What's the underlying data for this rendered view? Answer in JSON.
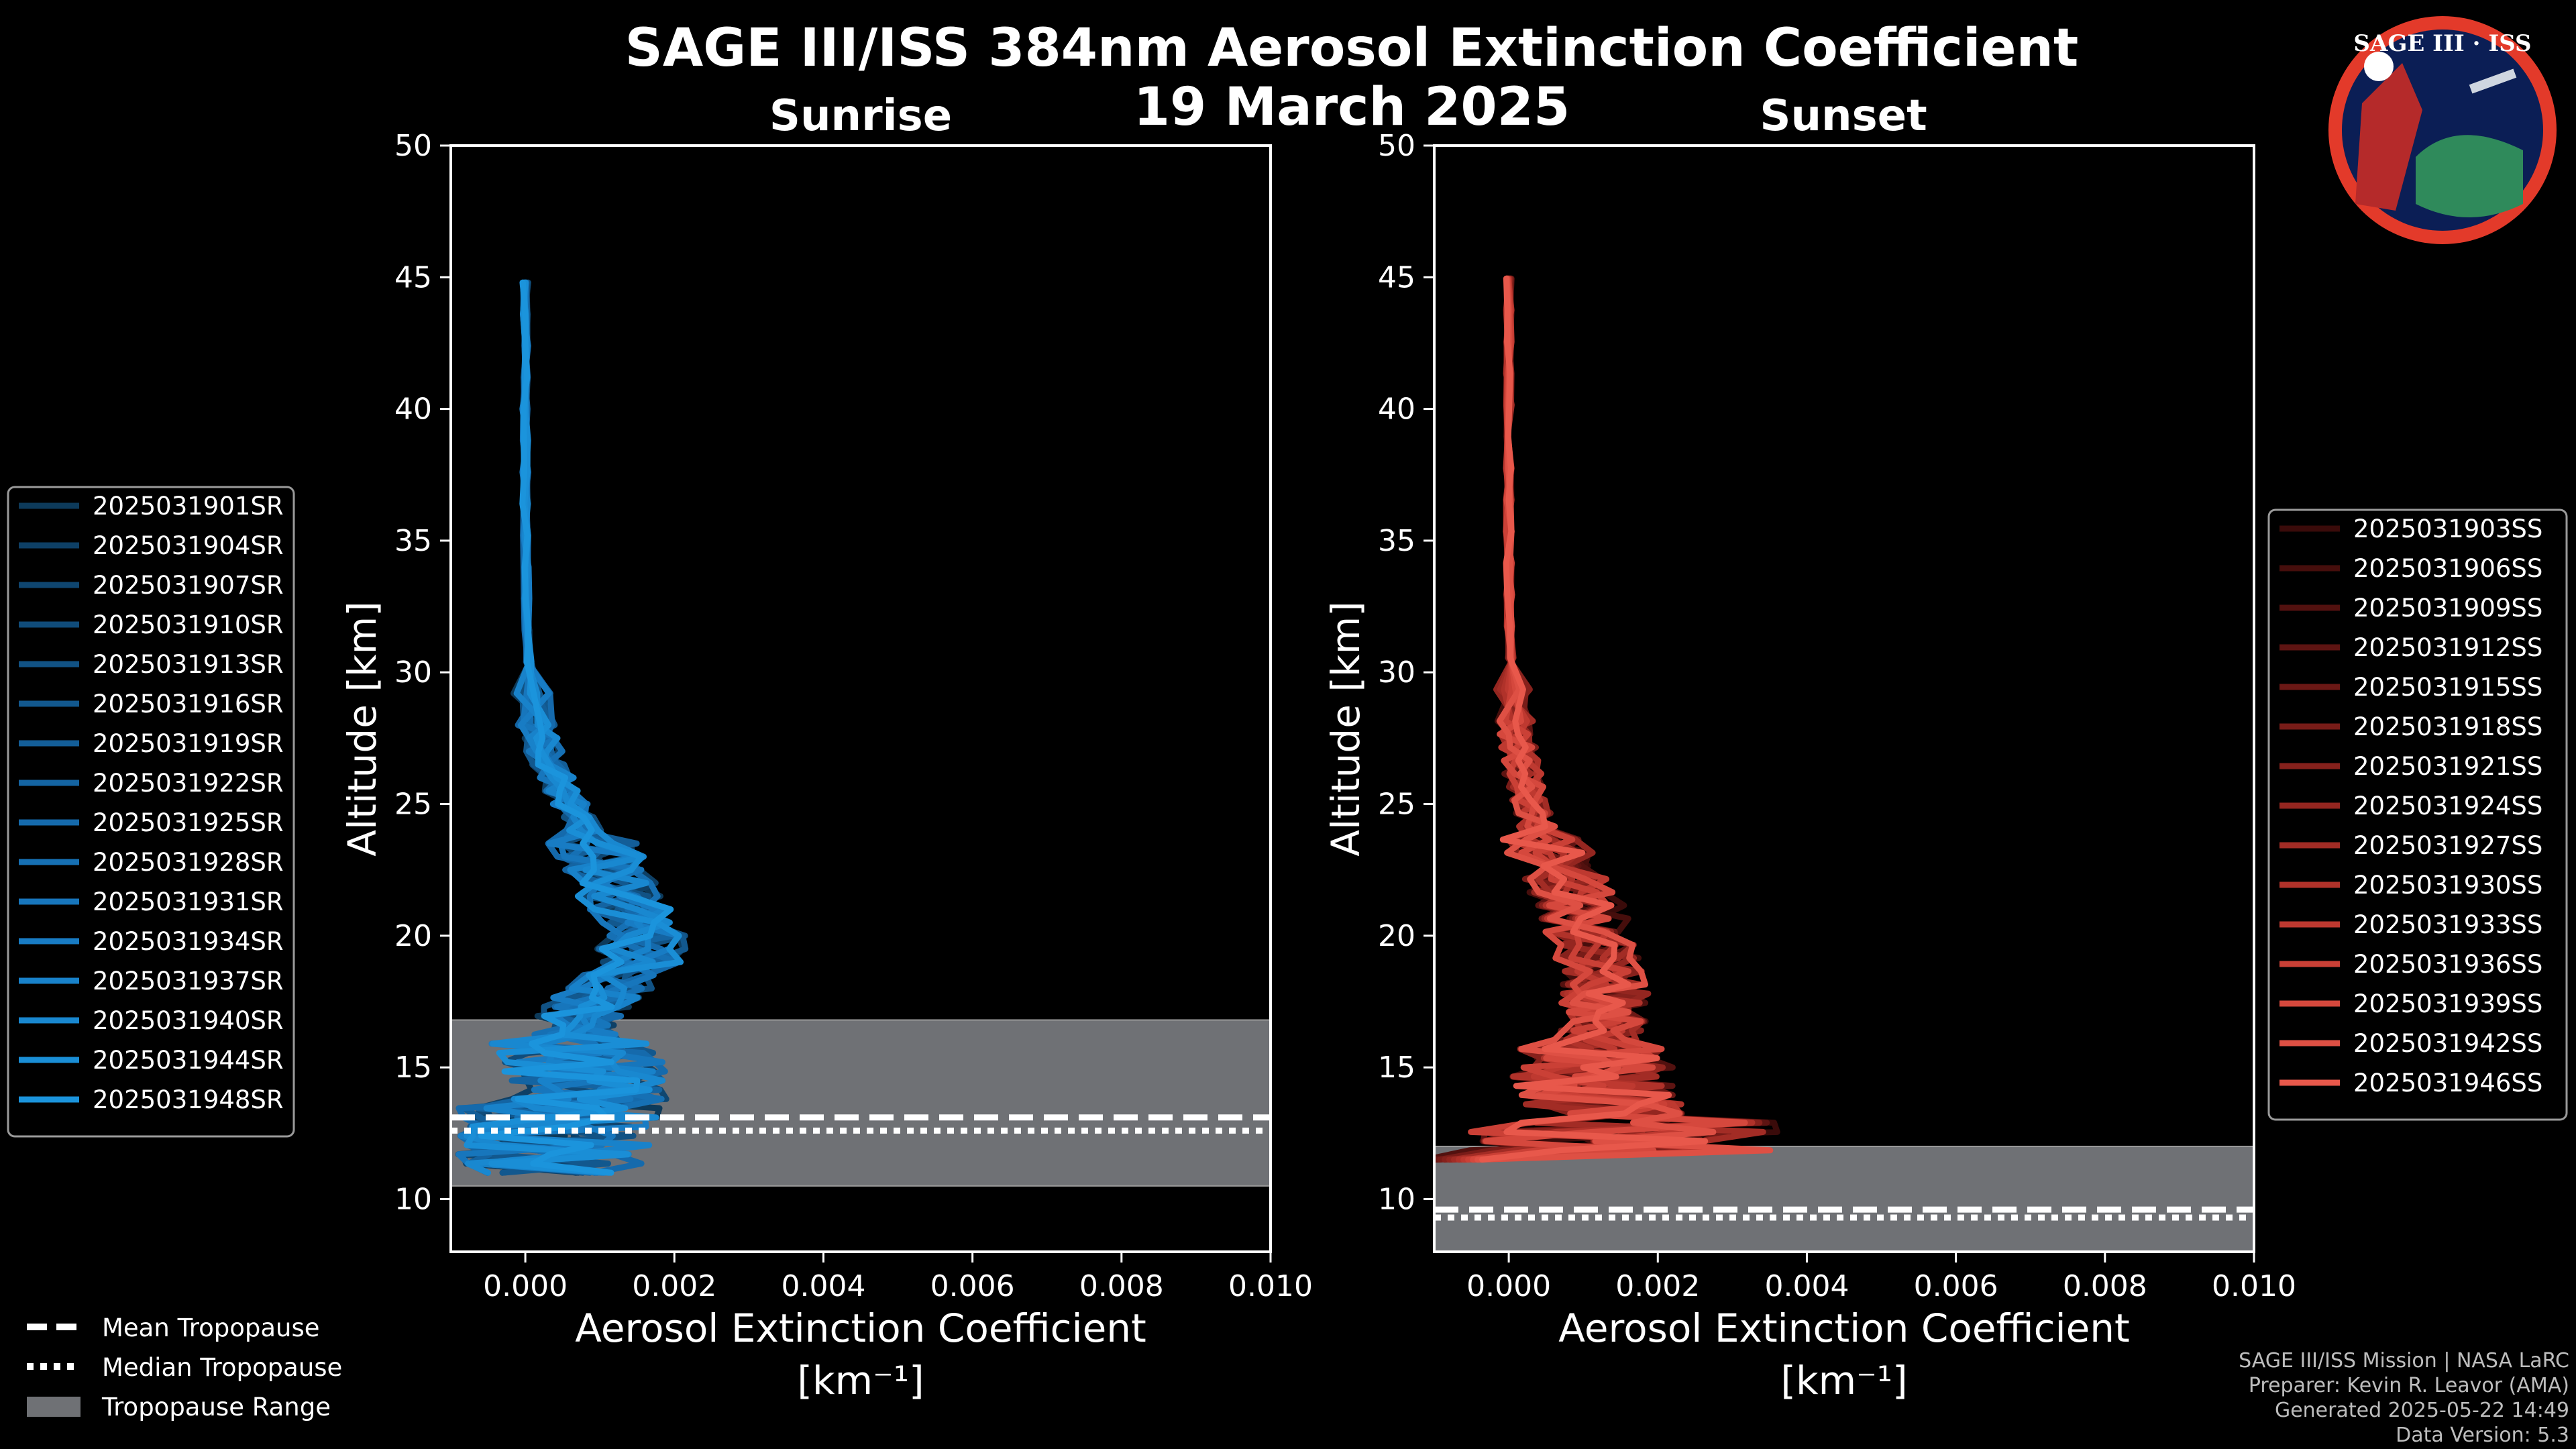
{
  "title_line1": "SAGE III/ISS 384nm Aerosol Extinction Coefficient",
  "title_line2": "19 March 2025",
  "logo_text": "SAGE III · ISS",
  "colors": {
    "sunrise": "#1a8fd6",
    "sunset": "#e8574a",
    "trop_range": "#6f7175",
    "frame": "#ffffff"
  },
  "chart_data": [
    {
      "type": "line",
      "panel": "sunrise",
      "title": "Sunrise",
      "xlabel": "Aerosol Extinction Coefficient",
      "xunits": "[km⁻¹]",
      "ylabel": "Altitude [km]",
      "xlim": [
        -0.001,
        0.01
      ],
      "ylim": [
        8,
        50
      ],
      "xticks": [
        0.0,
        0.002,
        0.004,
        0.006,
        0.008,
        0.01
      ],
      "xtick_labels": [
        "0.000",
        "0.002",
        "0.004",
        "0.006",
        "0.008",
        "0.010"
      ],
      "yticks": [
        10,
        15,
        20,
        25,
        30,
        35,
        40,
        45,
        50
      ],
      "ytick_labels": [
        "10",
        "15",
        "20",
        "25",
        "30",
        "35",
        "40",
        "45",
        "50"
      ],
      "tropopause": {
        "mean": 13.1,
        "median": 12.6,
        "range": [
          10.5,
          16.8
        ]
      },
      "profile_altitudes": [
        11,
        12,
        13,
        14,
        15,
        16,
        17,
        18,
        19,
        20,
        21,
        22,
        23,
        24,
        25,
        26,
        27,
        28,
        30,
        32,
        35,
        38,
        41,
        43,
        45
      ],
      "mean_profile": [
        0.0004,
        0.0006,
        0.0008,
        0.0009,
        0.0008,
        0.0006,
        0.0007,
        0.0011,
        0.0015,
        0.0016,
        0.0014,
        0.0012,
        0.001,
        0.0008,
        0.0006,
        0.0004,
        0.00025,
        0.00015,
        5e-05,
        2e-05,
        0.0,
        0.0,
        0.0,
        0.0,
        0.0
      ],
      "series": [
        {
          "name": "2025031901SR",
          "color": "#0d3a5a"
        },
        {
          "name": "2025031904SR",
          "color": "#0e4066"
        },
        {
          "name": "2025031907SR",
          "color": "#0f4670"
        },
        {
          "name": "2025031910SR",
          "color": "#104c7a"
        },
        {
          "name": "2025031913SR",
          "color": "#115284"
        },
        {
          "name": "2025031916SR",
          "color": "#12588e"
        },
        {
          "name": "2025031919SR",
          "color": "#135e98"
        },
        {
          "name": "2025031922SR",
          "color": "#1464a2"
        },
        {
          "name": "2025031925SR",
          "color": "#156aac"
        },
        {
          "name": "2025031928SR",
          "color": "#1670b4"
        },
        {
          "name": "2025031931SR",
          "color": "#1776bc"
        },
        {
          "name": "2025031934SR",
          "color": "#187cc4"
        },
        {
          "name": "2025031937SR",
          "color": "#1882ca"
        },
        {
          "name": "2025031940SR",
          "color": "#1988d0"
        },
        {
          "name": "2025031944SR",
          "color": "#1a8ed6"
        },
        {
          "name": "2025031948SR",
          "color": "#1b94dc"
        }
      ]
    },
    {
      "type": "line",
      "panel": "sunset",
      "title": "Sunset",
      "xlabel": "Aerosol Extinction Coefficient",
      "xunits": "[km⁻¹]",
      "ylabel": "Altitude [km]",
      "xlim": [
        -0.001,
        0.01
      ],
      "ylim": [
        8,
        50
      ],
      "xticks": [
        0.0,
        0.002,
        0.004,
        0.006,
        0.008,
        0.01
      ],
      "xtick_labels": [
        "0.000",
        "0.002",
        "0.004",
        "0.006",
        "0.008",
        "0.010"
      ],
      "yticks": [
        10,
        15,
        20,
        25,
        30,
        35,
        40,
        45,
        50
      ],
      "ytick_labels": [
        "10",
        "15",
        "20",
        "25",
        "30",
        "35",
        "40",
        "45",
        "50"
      ],
      "tropopause": {
        "mean": 9.6,
        "median": 9.3,
        "range": [
          8,
          12
        ]
      },
      "profile_altitudes": [
        11.5,
        12,
        13,
        14,
        15,
        16,
        17,
        18,
        19,
        20,
        21,
        22,
        23,
        24,
        25,
        26,
        27,
        28,
        30,
        32,
        35,
        38,
        41,
        43,
        45
      ],
      "mean_profile": [
        0.0009,
        0.0018,
        0.0014,
        0.0012,
        0.0011,
        0.0012,
        0.0013,
        0.0013,
        0.0012,
        0.0011,
        0.001,
        0.0008,
        0.0006,
        0.0004,
        0.0003,
        0.0002,
        0.00012,
        8e-05,
        3e-05,
        1e-05,
        0.0,
        0.0,
        0.0,
        0.0,
        0.0
      ],
      "series": [
        {
          "name": "2025031903SS",
          "color": "#3a0b0a"
        },
        {
          "name": "2025031906SS",
          "color": "#460e0c"
        },
        {
          "name": "2025031909SS",
          "color": "#52110f"
        },
        {
          "name": "2025031912SS",
          "color": "#5e1412"
        },
        {
          "name": "2025031915SS",
          "color": "#6b1815"
        },
        {
          "name": "2025031918SS",
          "color": "#781c18"
        },
        {
          "name": "2025031921SS",
          "color": "#86211c"
        },
        {
          "name": "2025031924SS",
          "color": "#942620"
        },
        {
          "name": "2025031927SS",
          "color": "#a22c25"
        },
        {
          "name": "2025031930SS",
          "color": "#b0322a"
        },
        {
          "name": "2025031933SS",
          "color": "#be3930"
        },
        {
          "name": "2025031936SS",
          "color": "#ca4036"
        },
        {
          "name": "2025031939SS",
          "color": "#d5483d"
        },
        {
          "name": "2025031942SS",
          "color": "#de5044"
        },
        {
          "name": "2025031946SS",
          "color": "#e8584b"
        }
      ]
    }
  ],
  "tropo_legend": {
    "mean": "Mean Tropopause",
    "median": "Median Tropopause",
    "range": "Tropopause Range"
  },
  "footer": {
    "line1": "SAGE III/ISS Mission | NASA LaRC",
    "line2": "Preparer: Kevin R. Leavor (AMA)",
    "line3": "Generated 2025-05-22 14:49",
    "line4": "Data Version: 5.3"
  }
}
